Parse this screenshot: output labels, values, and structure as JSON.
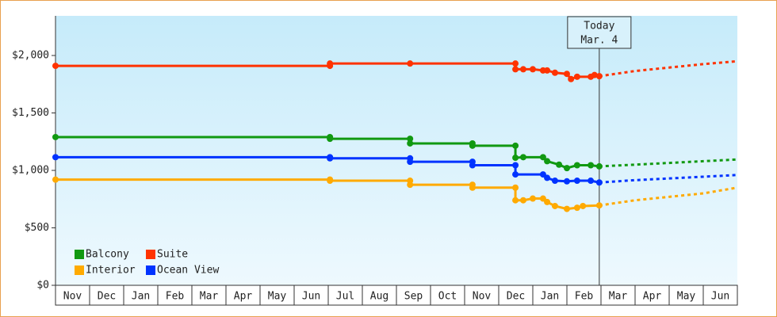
{
  "chart_data": {
    "type": "line",
    "categories": [
      "Nov",
      "Dec",
      "Jan",
      "Feb",
      "Mar",
      "Apr",
      "May",
      "Jun",
      "Jul",
      "Aug",
      "Sep",
      "Oct",
      "Nov",
      "Dec",
      "Jan",
      "Feb",
      "Mar",
      "Apr",
      "May",
      "Jun"
    ],
    "xlim": [
      0,
      20
    ],
    "ylim": [
      0,
      2345
    ],
    "yticks": [
      {
        "value": 0,
        "label": "$0"
      },
      {
        "value": 500,
        "label": "$500"
      },
      {
        "value": 1000,
        "label": "$1,000"
      },
      {
        "value": 1500,
        "label": "$1,500"
      },
      {
        "value": 2000,
        "label": "$2,000"
      }
    ],
    "today": {
      "x": 15.95,
      "label": [
        "Today",
        "Mar. 4"
      ]
    },
    "series": [
      {
        "name": "Balcony",
        "color": "#119911",
        "x": [
          0,
          8.05,
          8.05,
          10.4,
          10.4,
          12.23,
          12.23,
          13.49,
          13.49,
          13.72,
          14.3,
          14.42,
          14.77,
          15.0,
          15.3,
          15.7,
          15.95
        ],
        "values": [
          1290,
          1290,
          1275,
          1275,
          1235,
          1235,
          1215,
          1215,
          1110,
          1115,
          1115,
          1080,
          1050,
          1020,
          1045,
          1045,
          1035
        ],
        "forecast_x": [
          15.95,
          17,
          18,
          19,
          20
        ],
        "forecast_values": [
          1035,
          1050,
          1065,
          1080,
          1095
        ]
      },
      {
        "name": "Suite",
        "color": "#ff3300",
        "x": [
          0,
          8.05,
          8.05,
          10.4,
          13.49,
          13.49,
          13.72,
          14.0,
          14.3,
          14.42,
          14.65,
          15.0,
          15.12,
          15.3,
          15.7,
          15.81,
          15.95
        ],
        "values": [
          1910,
          1910,
          1930,
          1930,
          1930,
          1880,
          1880,
          1880,
          1870,
          1870,
          1850,
          1840,
          1795,
          1815,
          1815,
          1830,
          1820
        ],
        "forecast_x": [
          15.95,
          17,
          18,
          19,
          20
        ],
        "forecast_values": [
          1820,
          1865,
          1895,
          1925,
          1950
        ]
      },
      {
        "name": "Interior",
        "color": "#ffaa00",
        "x": [
          0,
          8.05,
          8.05,
          10.4,
          10.4,
          12.23,
          12.23,
          13.49,
          13.49,
          13.72,
          14.0,
          14.3,
          14.42,
          14.65,
          15.0,
          15.3,
          15.47,
          15.95
        ],
        "values": [
          920,
          920,
          910,
          910,
          875,
          875,
          850,
          850,
          740,
          740,
          755,
          755,
          725,
          690,
          665,
          675,
          690,
          695
        ],
        "forecast_x": [
          15.95,
          17,
          18,
          19,
          20
        ],
        "forecast_values": [
          695,
          740,
          770,
          800,
          850
        ]
      },
      {
        "name": "Ocean View",
        "color": "#0033ff",
        "x": [
          0,
          8.05,
          8.05,
          10.4,
          10.4,
          12.23,
          12.23,
          13.49,
          13.49,
          14.3,
          14.42,
          14.65,
          15.0,
          15.3,
          15.7,
          15.95
        ],
        "values": [
          1115,
          1115,
          1105,
          1105,
          1075,
          1075,
          1045,
          1045,
          965,
          965,
          935,
          910,
          905,
          910,
          910,
          895
        ],
        "forecast_x": [
          15.95,
          17,
          18,
          19,
          20
        ],
        "forecast_values": [
          895,
          915,
          930,
          945,
          960
        ]
      }
    ]
  }
}
